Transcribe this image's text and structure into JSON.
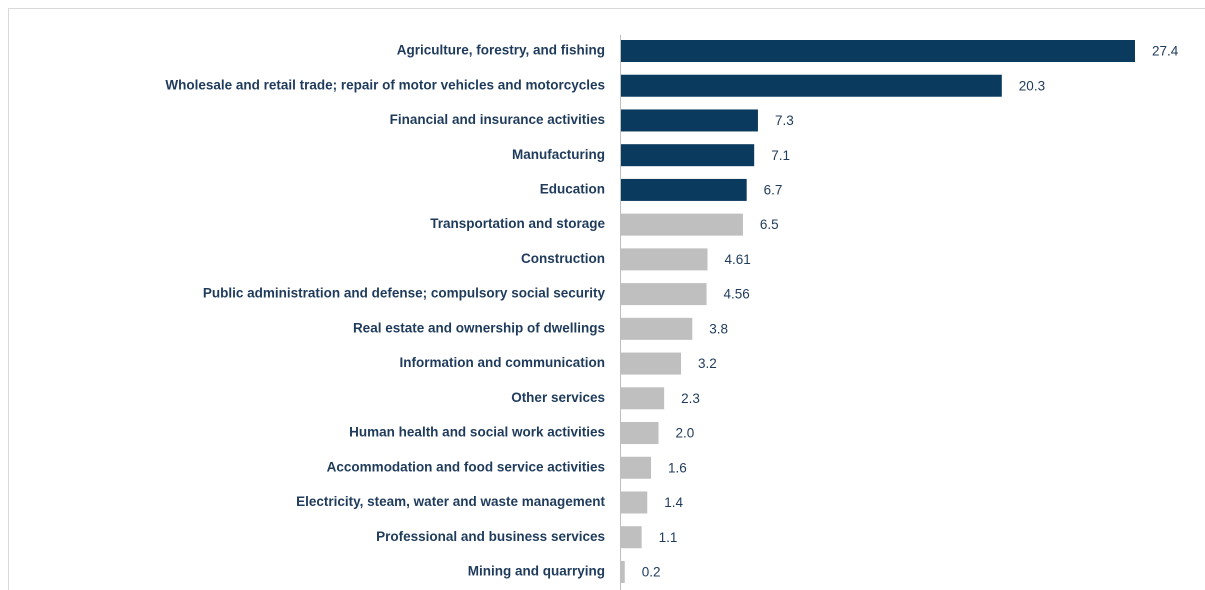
{
  "chart_data": {
    "type": "barh",
    "categories": [
      "Agriculture, forestry, and fishing",
      "Wholesale and retail trade; repair of motor vehicles and motorcycles",
      "Financial and insurance activities",
      "Manufacturing",
      "Education",
      "Transportation and storage",
      "Construction",
      "Public administration and defense; compulsory social security",
      "Real estate and ownership of dwellings",
      "Information and communication",
      "Other services",
      "Human health and social work activities",
      "Accommodation and food service activities",
      "Electricity, steam, water and waste management",
      "Professional and business services",
      "Mining and quarrying"
    ],
    "values": [
      27.4,
      20.3,
      7.3,
      7.1,
      6.7,
      6.5,
      4.61,
      4.56,
      3.8,
      3.2,
      2.3,
      2.0,
      1.6,
      1.4,
      1.1,
      0.2
    ],
    "value_labels": [
      "27.4",
      "20.3",
      "7.3",
      "7.1",
      "6.7",
      "6.5",
      "4.61",
      "4.56",
      "3.8",
      "3.2",
      "2.3",
      "2.0",
      "1.6",
      "1.4",
      "1.1",
      "0.2"
    ],
    "colors": [
      "#0b3a5f",
      "#0b3a5f",
      "#0b3a5f",
      "#0b3a5f",
      "#0b3a5f",
      "#bfbfbf",
      "#bfbfbf",
      "#bfbfbf",
      "#bfbfbf",
      "#bfbfbf",
      "#bfbfbf",
      "#bfbfbf",
      "#bfbfbf",
      "#bfbfbf",
      "#bfbfbf",
      "#bfbfbf"
    ]
  }
}
